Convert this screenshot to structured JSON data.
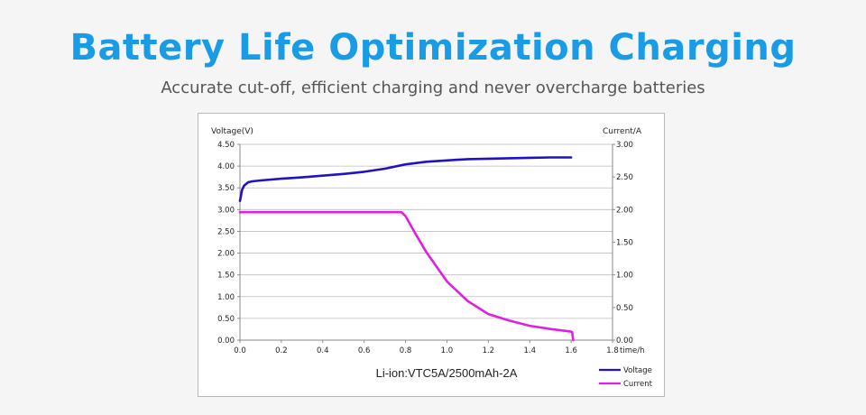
{
  "header": {
    "title": "Battery Life Optimization Charging",
    "subtitle": "Accurate cut-off, efficient charging and never overcharge batteries"
  },
  "colors": {
    "title": "#1a9be6",
    "voltage": "#1f12c4",
    "current": "#e020e0"
  },
  "chart_data": {
    "type": "line",
    "title": "Li-ion:VTC5A/2500mAh-2A",
    "xlabel": "time/h",
    "ylabel_left": "Voltage(V)",
    "ylabel_right": "Current/A",
    "xlim": [
      0,
      1.8
    ],
    "ylim_left": [
      0,
      4.5
    ],
    "ylim_right": [
      0,
      3.0
    ],
    "x_ticks": [
      "0.0",
      "0.2",
      "0.4",
      "0.6",
      "0.8",
      "1.0",
      "1.2",
      "1.4",
      "1.6",
      "1.8"
    ],
    "y_left_ticks": [
      "0.00",
      "0.50",
      "1.00",
      "1.50",
      "2.00",
      "2.50",
      "3.00",
      "3.50",
      "4.00",
      "4.50"
    ],
    "y_right_ticks": [
      "0.00",
      "0.50",
      "1.00",
      "1.50",
      "2.00",
      "2.50",
      "3.00"
    ],
    "grid": true,
    "legend_position": "bottom-right",
    "series": [
      {
        "name": "Voltage",
        "axis": "left",
        "x": [
          0.0,
          0.01,
          0.02,
          0.04,
          0.06,
          0.1,
          0.2,
          0.3,
          0.4,
          0.5,
          0.6,
          0.7,
          0.8,
          0.9,
          1.0,
          1.1,
          1.2,
          1.3,
          1.4,
          1.5,
          1.6
        ],
        "y": [
          3.2,
          3.45,
          3.55,
          3.63,
          3.65,
          3.67,
          3.71,
          3.74,
          3.78,
          3.82,
          3.87,
          3.94,
          4.04,
          4.1,
          4.13,
          4.16,
          4.17,
          4.18,
          4.19,
          4.2,
          4.2
        ]
      },
      {
        "name": "Current",
        "axis": "right",
        "x": [
          0.0,
          0.2,
          0.4,
          0.6,
          0.7,
          0.78,
          0.8,
          0.85,
          0.9,
          1.0,
          1.1,
          1.2,
          1.3,
          1.4,
          1.5,
          1.6,
          1.605,
          1.61
        ],
        "y": [
          1.96,
          1.96,
          1.96,
          1.96,
          1.96,
          1.96,
          1.9,
          1.62,
          1.35,
          0.9,
          0.6,
          0.4,
          0.3,
          0.22,
          0.17,
          0.13,
          0.12,
          0.0
        ]
      }
    ]
  }
}
